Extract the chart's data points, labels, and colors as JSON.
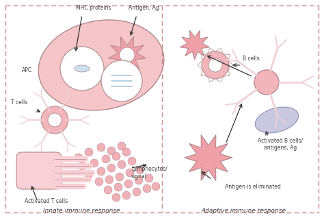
{
  "bg_color": "#ffffff",
  "pink_fill": "#f5c5ca",
  "pink_medium": "#f0a0a8",
  "pink_light": "#f8d0d5",
  "pink_cell": "#f2b5bc",
  "pink_dots": "#f0b0b8",
  "blue_fill": "#c8c8e0",
  "light_blue": "#cce0f0",
  "border_color": "#b08888",
  "text_color": "#404040",
  "arrow_color": "#303030",
  "dashed_color": "#cc8888",
  "label_innate": "Innate immune response",
  "label_adaptive": "Adaptive immune response",
  "label_mhc": "MHC proteins",
  "label_antigen": "Antigen, Ag",
  "label_apc": "APC",
  "label_tcells": "T cells",
  "label_activated_t": "Activated T cells",
  "label_lymphocytes": "Lymphocytes/\nsignal",
  "label_bcells": "B cells",
  "label_activated_b": "Activated B cells/\nantigens, Ag",
  "label_eliminated": "Antigen is eliminated"
}
